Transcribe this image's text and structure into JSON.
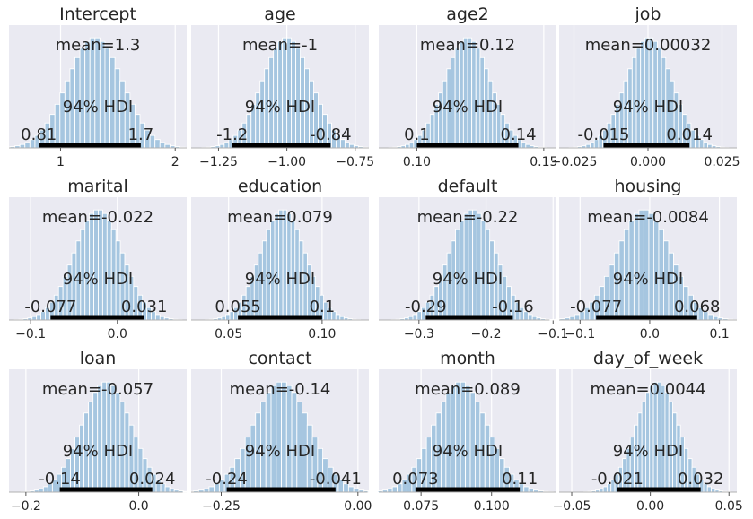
{
  "hdi_label": "94% HDI",
  "colors": {
    "panel_bg": "#eaeaf2",
    "bar": "#a6c6e0",
    "bar_edge": "#ffffff",
    "hdi": "#000000",
    "grid": "#ffffff",
    "baseline": "#b0b0b0"
  },
  "chart_data": [
    {
      "type": "bar",
      "title": "Intercept",
      "mean_label": "mean=1.3",
      "hdi_low_label": "0.81",
      "hdi_high_label": "1.7",
      "mean": 1.3,
      "sd": 0.24,
      "hdi": [
        0.81,
        1.7
      ],
      "xlim": [
        0.55,
        2.1
      ],
      "xticks": [
        1,
        2
      ],
      "xtick_labels": [
        "1",
        "2"
      ]
    },
    {
      "type": "bar",
      "title": "age",
      "mean_label": "mean=-1",
      "hdi_low_label": "-1.2",
      "hdi_high_label": "-0.84",
      "mean": -1.0,
      "sd": 0.09,
      "hdi": [
        -1.2,
        -0.84
      ],
      "xlim": [
        -1.35,
        -0.7
      ],
      "xticks": [
        -1.25,
        -1.0,
        -0.75
      ],
      "xtick_labels": [
        "−1.25",
        "−1.00",
        "−0.75"
      ]
    },
    {
      "type": "bar",
      "title": "age2",
      "mean_label": "mean=0.12",
      "hdi_low_label": "0.1",
      "hdi_high_label": "0.14",
      "mean": 0.12,
      "sd": 0.009,
      "hdi": [
        0.1,
        0.14
      ],
      "xlim": [
        0.085,
        0.155
      ],
      "xticks": [
        0.1,
        0.15
      ],
      "xtick_labels": [
        "0.10",
        "0.15"
      ]
    },
    {
      "type": "bar",
      "title": "job",
      "mean_label": "mean=0.00032",
      "hdi_low_label": "-0.015",
      "hdi_high_label": "0.014",
      "mean": 0.00032,
      "sd": 0.0078,
      "hdi": [
        -0.015,
        0.014
      ],
      "xlim": [
        -0.03,
        0.03
      ],
      "xticks": [
        -0.025,
        0.0,
        0.025
      ],
      "xtick_labels": [
        "−0.025",
        "0.000",
        "0.025"
      ]
    },
    {
      "type": "bar",
      "title": "marital",
      "mean_label": "mean=-0.022",
      "hdi_low_label": "-0.077",
      "hdi_high_label": "0.031",
      "mean": -0.022,
      "sd": 0.028,
      "hdi": [
        -0.077,
        0.031
      ],
      "xlim": [
        -0.125,
        0.08
      ],
      "xticks": [
        -0.1,
        0.0
      ],
      "xtick_labels": [
        "−0.1",
        "0.0"
      ]
    },
    {
      "type": "bar",
      "title": "education",
      "mean_label": "mean=0.079",
      "hdi_low_label": "0.055",
      "hdi_high_label": "0.1",
      "mean": 0.079,
      "sd": 0.012,
      "hdi": [
        0.055,
        0.1
      ],
      "xlim": [
        0.03,
        0.125
      ],
      "xticks": [
        0.05,
        0.1
      ],
      "xtick_labels": [
        "0.05",
        "0.10"
      ]
    },
    {
      "type": "bar",
      "title": "default",
      "mean_label": "mean=-0.22",
      "hdi_low_label": "-0.29",
      "hdi_high_label": "-0.16",
      "mean": -0.22,
      "sd": 0.035,
      "hdi": [
        -0.29,
        -0.16
      ],
      "xlim": [
        -0.36,
        -0.095
      ],
      "xticks": [
        -0.3,
        -0.2,
        -0.1
      ],
      "xtick_labels": [
        "−0.3",
        "−0.2",
        "−0.1"
      ]
    },
    {
      "type": "bar",
      "title": "housing",
      "mean_label": "mean=-0.0084",
      "hdi_low_label": "-0.077",
      "hdi_high_label": "0.068",
      "mean": -0.0084,
      "sd": 0.039,
      "hdi": [
        -0.077,
        0.068
      ],
      "xlim": [
        -0.13,
        0.125
      ],
      "xticks": [
        -0.1,
        0.0,
        0.1
      ],
      "xtick_labels": [
        "−0.1",
        "0.0",
        "0.1"
      ]
    },
    {
      "type": "bar",
      "title": "loan",
      "mean_label": "mean=-0.057",
      "hdi_low_label": "-0.14",
      "hdi_high_label": "0.024",
      "mean": -0.057,
      "sd": 0.044,
      "hdi": [
        -0.14,
        0.024
      ],
      "xlim": [
        -0.23,
        0.085
      ],
      "xticks": [
        -0.2,
        0.0
      ],
      "xtick_labels": [
        "−0.2",
        "0.0"
      ]
    },
    {
      "type": "bar",
      "title": "contact",
      "mean_label": "mean=-0.14",
      "hdi_low_label": "-0.24",
      "hdi_high_label": "-0.041",
      "mean": -0.14,
      "sd": 0.052,
      "hdi": [
        -0.24,
        -0.041
      ],
      "xlim": [
        -0.305,
        0.02
      ],
      "xticks": [
        -0.25,
        0.0
      ],
      "xtick_labels": [
        "−0.25",
        "0.00"
      ]
    },
    {
      "type": "bar",
      "title": "month",
      "mean_label": "mean=0.089",
      "hdi_low_label": "0.073",
      "hdi_high_label": "0.11",
      "mean": 0.089,
      "sd": 0.0095,
      "hdi": [
        0.073,
        0.11
      ],
      "xlim": [
        0.06,
        0.123
      ],
      "xticks": [
        0.075,
        0.1
      ],
      "xtick_labels": [
        "0.075",
        "0.100"
      ]
    },
    {
      "type": "bar",
      "title": "day_of_week",
      "mean_label": "mean=0.0044",
      "hdi_low_label": "-0.021",
      "hdi_high_label": "0.032",
      "mean": 0.0044,
      "sd": 0.0135,
      "hdi": [
        -0.021,
        0.032
      ],
      "xlim": [
        -0.058,
        0.055
      ],
      "xticks": [
        -0.05,
        0.0,
        0.05
      ],
      "xtick_labels": [
        "−0.05",
        "0.00",
        "0.05"
      ]
    }
  ]
}
